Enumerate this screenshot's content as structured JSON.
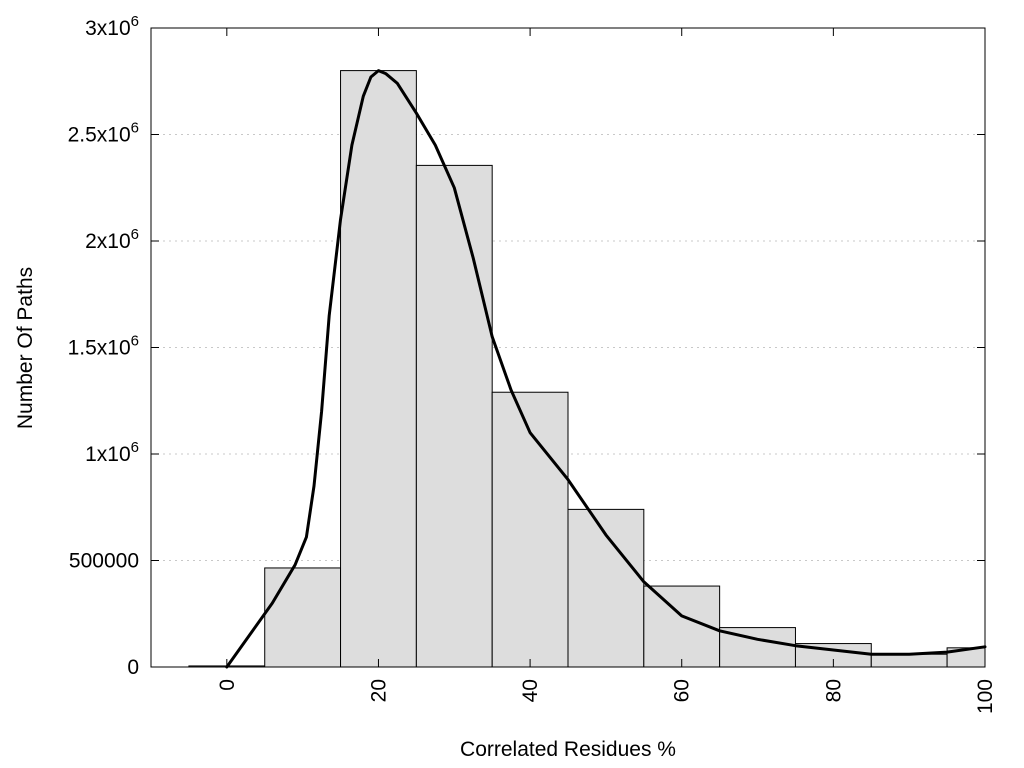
{
  "chart_data": {
    "type": "bar",
    "title": "",
    "xlabel": "Correlated Residues %",
    "ylabel": "Number Of Paths",
    "xlim": [
      -10,
      100
    ],
    "ylim": [
      0,
      3000000
    ],
    "grid": true,
    "bar_color": "#dddddd",
    "curve_color": "#000000",
    "bin_width": 10,
    "bins": [
      {
        "center": 0,
        "value": 5000
      },
      {
        "center": 10,
        "value": 465000
      },
      {
        "center": 20,
        "value": 2800000
      },
      {
        "center": 30,
        "value": 2355000
      },
      {
        "center": 40,
        "value": 1290000
      },
      {
        "center": 50,
        "value": 740000
      },
      {
        "center": 60,
        "value": 380000
      },
      {
        "center": 70,
        "value": 185000
      },
      {
        "center": 80,
        "value": 110000
      },
      {
        "center": 90,
        "value": 60000
      },
      {
        "center": 100,
        "value": 90000
      }
    ],
    "curve": {
      "x": [
        0,
        3,
        6,
        9,
        10.5,
        11.5,
        12.5,
        13.5,
        15,
        16.5,
        18,
        19,
        20,
        21,
        22.5,
        25,
        27.5,
        30,
        32.5,
        35,
        37.5,
        40,
        45,
        50,
        55,
        60,
        65,
        70,
        75,
        80,
        85,
        90,
        95,
        100
      ],
      "y": [
        0,
        150000,
        300000,
        480000,
        610000,
        850000,
        1200000,
        1650000,
        2100000,
        2450000,
        2680000,
        2770000,
        2800000,
        2785000,
        2740000,
        2600000,
        2450000,
        2250000,
        1920000,
        1550000,
        1300000,
        1100000,
        880000,
        620000,
        400000,
        240000,
        170000,
        130000,
        100000,
        80000,
        60000,
        60000,
        70000,
        95000
      ]
    },
    "x_ticks": [
      {
        "value": 0,
        "label": "0"
      },
      {
        "value": 20,
        "label": "20"
      },
      {
        "value": 40,
        "label": "40"
      },
      {
        "value": 60,
        "label": "60"
      },
      {
        "value": 80,
        "label": "80"
      },
      {
        "value": 100,
        "label": "100"
      }
    ],
    "y_ticks": [
      {
        "value": 0,
        "mantissa": "0",
        "exp": ""
      },
      {
        "value": 500000,
        "mantissa": "500000",
        "exp": ""
      },
      {
        "value": 1000000,
        "mantissa": "1x10",
        "exp": "6"
      },
      {
        "value": 1500000,
        "mantissa": "1.5x10",
        "exp": "6"
      },
      {
        "value": 2000000,
        "mantissa": "2x10",
        "exp": "6"
      },
      {
        "value": 2500000,
        "mantissa": "2.5x10",
        "exp": "6"
      },
      {
        "value": 3000000,
        "mantissa": "3x10",
        "exp": "6"
      }
    ]
  }
}
